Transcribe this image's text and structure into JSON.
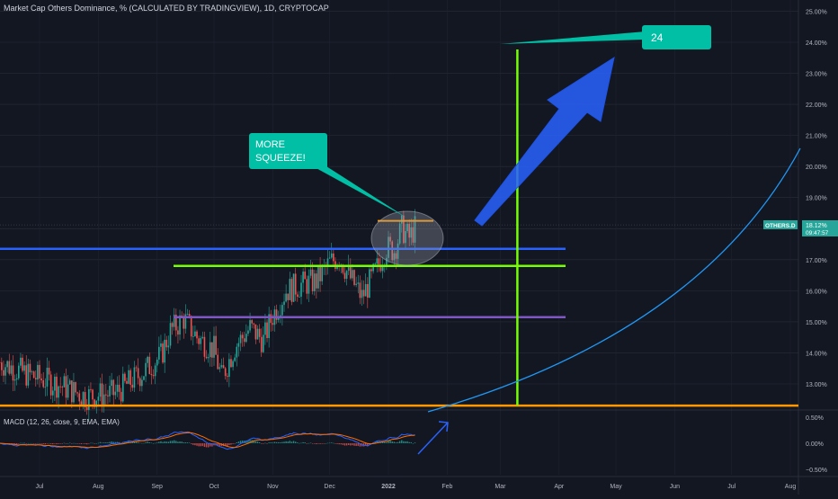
{
  "header": {
    "title": "Market Cap Others Dominance, % (CALCULATED BY TRADINGVIEW), 1D, CRYPTOCAP"
  },
  "macd": {
    "label": "MACD (12, 26, close, 9, EMA, EMA)",
    "yticks": [
      "0.50%",
      "0.00%",
      "−0.50%"
    ]
  },
  "price_badge": {
    "symbol": "OTHERS.D",
    "value": "18.12%",
    "countdown": "09:47:57"
  },
  "annotations": {
    "squeeze_line1": "MORE",
    "squeeze_line2": "SQUEEZE!",
    "target": "24"
  },
  "colors": {
    "background": "#131722",
    "up": "#26a69a",
    "down": "#ef5350",
    "blue_line": "#2962ff",
    "green_line": "#76ff03",
    "purple_line": "#7e57c2",
    "orange_line": "#ff9800",
    "teal_callout": "#00bfa5",
    "curve": "#2196f3"
  },
  "chart_data": {
    "type": "candlestick",
    "title": "Market Cap Others Dominance, % (CALCULATED BY TRADINGVIEW), 1D, CRYPTOCAP",
    "x_tick_labels": [
      "Jul",
      "Aug",
      "Sep",
      "Oct",
      "Nov",
      "Dec",
      "2022",
      "Feb",
      "Mar",
      "Apr",
      "May",
      "Jun",
      "Jul",
      "Aug"
    ],
    "y_tick_labels": [
      "25.00%",
      "24.00%",
      "23.00%",
      "22.00%",
      "21.00%",
      "20.00%",
      "19.00%",
      "18.00%",
      "17.00%",
      "16.00%",
      "15.00%",
      "14.00%",
      "13.00%"
    ],
    "ylim": [
      12.2,
      25.2
    ],
    "close_series": [
      {
        "date": "2021-06-10",
        "value": 13.7
      },
      {
        "date": "2021-06-25",
        "value": 13.3
      },
      {
        "date": "2021-07-10",
        "value": 13.0
      },
      {
        "date": "2021-07-25",
        "value": 12.6
      },
      {
        "date": "2021-08-10",
        "value": 12.7
      },
      {
        "date": "2021-08-25",
        "value": 13.4
      },
      {
        "date": "2021-09-03",
        "value": 13.9
      },
      {
        "date": "2021-09-08",
        "value": 14.7
      },
      {
        "date": "2021-09-15",
        "value": 15.1
      },
      {
        "date": "2021-09-22",
        "value": 14.5
      },
      {
        "date": "2021-10-01",
        "value": 14.1
      },
      {
        "date": "2021-10-05",
        "value": 13.2
      },
      {
        "date": "2021-10-12",
        "value": 14.2
      },
      {
        "date": "2021-10-20",
        "value": 14.8
      },
      {
        "date": "2021-10-27",
        "value": 14.4
      },
      {
        "date": "2021-11-01",
        "value": 15.2
      },
      {
        "date": "2021-11-08",
        "value": 16.0
      },
      {
        "date": "2021-11-16",
        "value": 16.2
      },
      {
        "date": "2021-11-24",
        "value": 16.3
      },
      {
        "date": "2021-12-01",
        "value": 16.9
      },
      {
        "date": "2021-12-06",
        "value": 17.1
      },
      {
        "date": "2021-12-12",
        "value": 16.4
      },
      {
        "date": "2021-12-18",
        "value": 15.8
      },
      {
        "date": "2021-12-25",
        "value": 16.6
      },
      {
        "date": "2021-12-31",
        "value": 17.4
      },
      {
        "date": "2022-01-04",
        "value": 17.3
      },
      {
        "date": "2022-01-08",
        "value": 18.0
      },
      {
        "date": "2022-01-12",
        "value": 17.7
      },
      {
        "date": "2022-01-16",
        "value": 18.12
      }
    ],
    "horizontal_levels": [
      {
        "value": 17.35,
        "color": "#2962ff"
      },
      {
        "value": 16.8,
        "color": "#76ff03"
      },
      {
        "value": 15.15,
        "color": "#7e57c2"
      },
      {
        "value": 12.3,
        "color": "#ff9800"
      },
      {
        "value": 18.25,
        "color": "#ff9800"
      }
    ],
    "vertical_marker_date": "2022-03-10",
    "macd": {
      "ylim": [
        -0.6,
        0.6
      ],
      "ticks": [
        0.5,
        0.0,
        -0.5
      ]
    }
  }
}
